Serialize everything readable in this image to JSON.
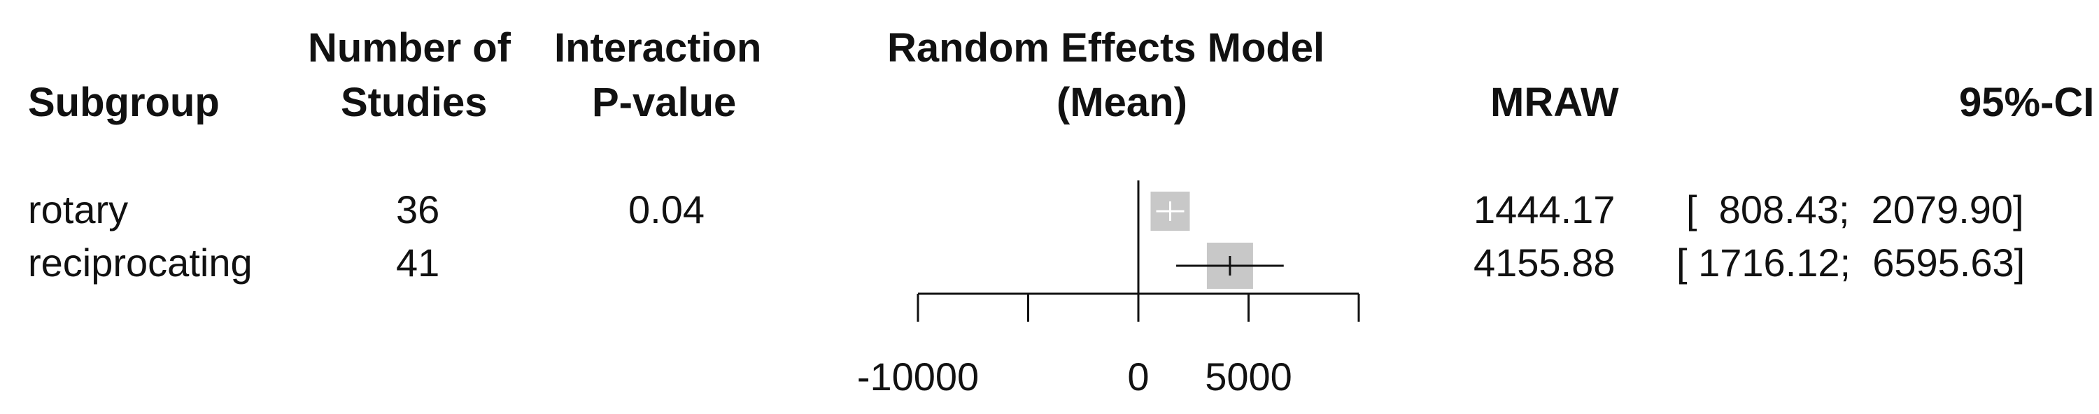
{
  "headers": {
    "subgroup": "Subgroup",
    "n_studies_1": "Number of",
    "n_studies_2": "Studies",
    "pval_1": "Interaction",
    "pval_2": "P-value",
    "model_1": "Random Effects Model",
    "model_2": "(Mean)",
    "mraw": "MRAW",
    "ci": "95%-CI"
  },
  "rows": [
    {
      "subgroup": "rotary",
      "n_studies": "36",
      "pvalue": "0.04",
      "mraw": "1444.17",
      "ci": "[  808.43;  2079.90]"
    },
    {
      "subgroup": "reciprocating",
      "n_studies": "41",
      "pvalue": "",
      "mraw": "4155.88",
      "ci": "[ 1716.12;  6595.63]"
    }
  ],
  "chart_data": {
    "type": "forest",
    "title": "Random Effects Model (Mean)",
    "xlabel": "",
    "ylabel": "",
    "xlim": [
      -10000,
      10000
    ],
    "tick_values": [
      -10000,
      -5000,
      0,
      5000,
      10000
    ],
    "tick_labels": [
      "-10000",
      "",
      "0",
      "5000",
      ""
    ],
    "reference_line": 0,
    "categories": [
      "rotary",
      "reciprocating"
    ],
    "estimates": [
      1444.17,
      4155.88
    ],
    "ci_lower": [
      808.43,
      1716.12
    ],
    "ci_upper": [
      2079.9,
      6595.63
    ],
    "box_color": "#c8c8c8",
    "rotary_marker_color": "#ffffff",
    "reciprocating_marker_color": "#111111"
  }
}
